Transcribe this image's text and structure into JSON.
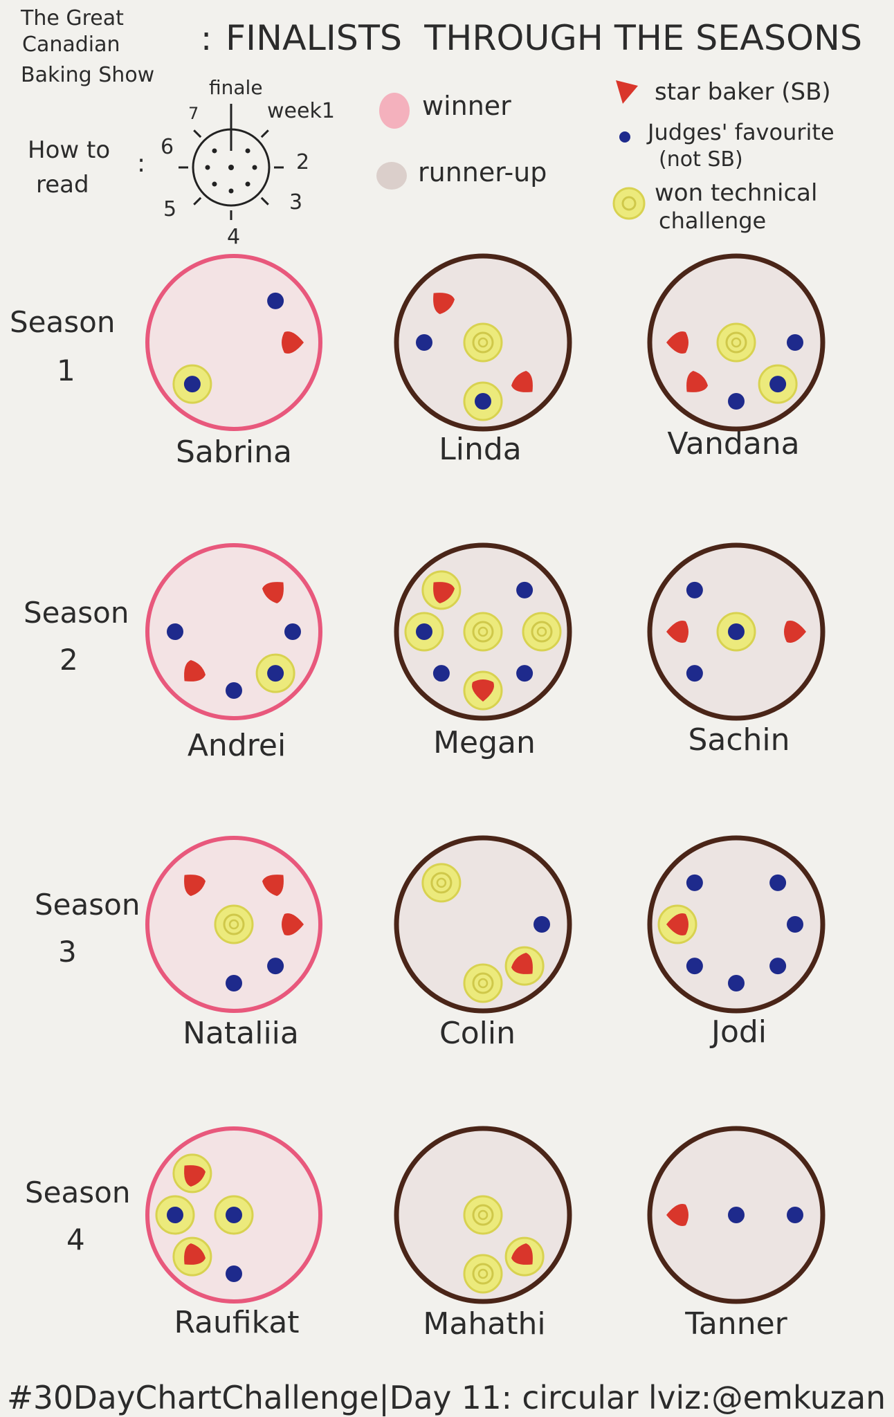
{
  "header": {
    "title_small_line1": "The Great",
    "title_small_line2": "Canadian",
    "title_small_line3": "Baking Show",
    "colon": ":",
    "title_main": "FINALISTS  THROUGH THE SEASONS"
  },
  "how_to_read": {
    "label_line1": "How to",
    "label_line2": "read",
    "colon": ":",
    "finale": "finale",
    "week1": "week1",
    "w2": "2",
    "w3": "3",
    "w4": "4",
    "w5": "5",
    "w6": "6",
    "w7": "7"
  },
  "legend": {
    "winner": "winner",
    "runner_up": "runner-up",
    "star_baker": "star baker (SB)",
    "judges_fav_line1": "Judges' favourite",
    "judges_fav_line2": "(not SB)",
    "technical_line1": "won technical",
    "technical_line2": "challenge"
  },
  "colors": {
    "winner_ring": "#e8587c",
    "runner_up_ring": "#4a2518",
    "fill": "#ece4e2",
    "star_baker": "#d9362b",
    "judges_favourite": "#1e2a8c",
    "technical": "#ecea7c"
  },
  "chart_data": {
    "type": "radial dot chart",
    "angle_encoding": "week number clockwise from top; finale at 12 o'clock, week 1 just after",
    "weeks": [
      "week1",
      "2",
      "3",
      "4",
      "5",
      "6",
      "7",
      "finale"
    ],
    "seasons": [
      {
        "label_line1": "Season",
        "label_line2": "1",
        "finalists": [
          {
            "name": "Sabrina",
            "result": "winner",
            "weeks": [
              {
                "week": 1,
                "marker": "judges_favourite"
              },
              {
                "week": 2,
                "marker": "star_baker"
              },
              {
                "week": 5,
                "marker": "judges_favourite",
                "technical": true
              }
            ]
          },
          {
            "name": "Linda",
            "result": "runner-up",
            "weeks": [
              {
                "week": 3,
                "marker": "star_baker"
              },
              {
                "week": 4,
                "marker": "judges_favourite",
                "technical": true
              },
              {
                "week": 6,
                "marker": "judges_favourite"
              },
              {
                "week": 7,
                "marker": "star_baker"
              },
              {
                "week": 8,
                "marker": "none",
                "technical": true
              }
            ]
          },
          {
            "name": "Vandana",
            "result": "runner-up",
            "weeks": [
              {
                "week": 2,
                "marker": "judges_favourite"
              },
              {
                "week": 3,
                "marker": "judges_favourite",
                "technical": true
              },
              {
                "week": 4,
                "marker": "judges_favourite"
              },
              {
                "week": 5,
                "marker": "star_baker"
              },
              {
                "week": 6,
                "marker": "star_baker"
              },
              {
                "week": 8,
                "marker": "none",
                "technical": true
              }
            ]
          }
        ]
      },
      {
        "label_line1": "Season",
        "label_line2": "2",
        "finalists": [
          {
            "name": "Andrei",
            "result": "winner",
            "weeks": [
              {
                "week": 1,
                "marker": "star_baker"
              },
              {
                "week": 2,
                "marker": "judges_favourite"
              },
              {
                "week": 3,
                "marker": "judges_favourite",
                "technical": true
              },
              {
                "week": 4,
                "marker": "judges_favourite"
              },
              {
                "week": 5,
                "marker": "star_baker"
              },
              {
                "week": 6,
                "marker": "judges_favourite"
              }
            ]
          },
          {
            "name": "Megan",
            "result": "runner-up",
            "weeks": [
              {
                "week": 1,
                "marker": "judges_favourite"
              },
              {
                "week": 2,
                "marker": "none",
                "technical": true
              },
              {
                "week": 3,
                "marker": "judges_favourite"
              },
              {
                "week": 4,
                "marker": "star_baker",
                "technical": true
              },
              {
                "week": 5,
                "marker": "judges_favourite"
              },
              {
                "week": 6,
                "marker": "judges_favourite",
                "technical": true
              },
              {
                "week": 7,
                "marker": "star_baker",
                "technical": true
              },
              {
                "week": 8,
                "marker": "none",
                "technical": true
              }
            ]
          },
          {
            "name": "Sachin",
            "result": "runner-up",
            "weeks": [
              {
                "week": 2,
                "marker": "star_baker"
              },
              {
                "week": 5,
                "marker": "judges_favourite"
              },
              {
                "week": 6,
                "marker": "star_baker"
              },
              {
                "week": 7,
                "marker": "judges_favourite"
              },
              {
                "week": 8,
                "marker": "judges_favourite",
                "technical": true
              }
            ]
          }
        ]
      },
      {
        "label_line1": "Season",
        "label_line2": "3",
        "finalists": [
          {
            "name": "Nataliia",
            "result": "winner",
            "weeks": [
              {
                "week": 1,
                "marker": "star_baker"
              },
              {
                "week": 2,
                "marker": "star_baker"
              },
              {
                "week": 3,
                "marker": "judges_favourite"
              },
              {
                "week": 4,
                "marker": "judges_favourite"
              },
              {
                "week": 7,
                "marker": "star_baker"
              },
              {
                "week": 8,
                "marker": "none",
                "technical": true
              }
            ]
          },
          {
            "name": "Colin",
            "result": "runner-up",
            "weeks": [
              {
                "week": 2,
                "marker": "judges_favourite"
              },
              {
                "week": 3,
                "marker": "star_baker",
                "technical": true
              },
              {
                "week": 4,
                "marker": "none",
                "technical": true
              },
              {
                "week": 7,
                "marker": "none",
                "technical": true
              }
            ]
          },
          {
            "name": "Jodi",
            "result": "runner-up",
            "weeks": [
              {
                "week": 1,
                "marker": "judges_favourite"
              },
              {
                "week": 2,
                "marker": "judges_favourite"
              },
              {
                "week": 3,
                "marker": "judges_favourite"
              },
              {
                "week": 4,
                "marker": "judges_favourite"
              },
              {
                "week": 5,
                "marker": "judges_favourite"
              },
              {
                "week": 6,
                "marker": "star_baker",
                "technical": true
              },
              {
                "week": 7,
                "marker": "judges_favourite"
              }
            ]
          }
        ]
      },
      {
        "label_line1": "Season",
        "label_line2": "4",
        "finalists": [
          {
            "name": "Raufikat",
            "result": "winner",
            "weeks": [
              {
                "week": 4,
                "marker": "judges_favourite"
              },
              {
                "week": 5,
                "marker": "star_baker",
                "technical": true
              },
              {
                "week": 6,
                "marker": "judges_favourite",
                "technical": true
              },
              {
                "week": 7,
                "marker": "star_baker",
                "technical": true
              },
              {
                "week": 8,
                "marker": "judges_favourite",
                "technical": true
              }
            ]
          },
          {
            "name": "Mahathi",
            "result": "runner-up",
            "weeks": [
              {
                "week": 3,
                "marker": "star_baker",
                "technical": true
              },
              {
                "week": 4,
                "marker": "none",
                "technical": true
              },
              {
                "week": 8,
                "marker": "none",
                "technical": true
              }
            ]
          },
          {
            "name": "Tanner",
            "result": "runner-up",
            "weeks": [
              {
                "week": 2,
                "marker": "judges_favourite"
              },
              {
                "week": 6,
                "marker": "star_baker"
              },
              {
                "week": 8,
                "marker": "judges_favourite"
              }
            ]
          }
        ]
      }
    ]
  },
  "footer": {
    "credit": "#30DayChartChallenge|Day 11: circular lviz:@emkuzan"
  }
}
